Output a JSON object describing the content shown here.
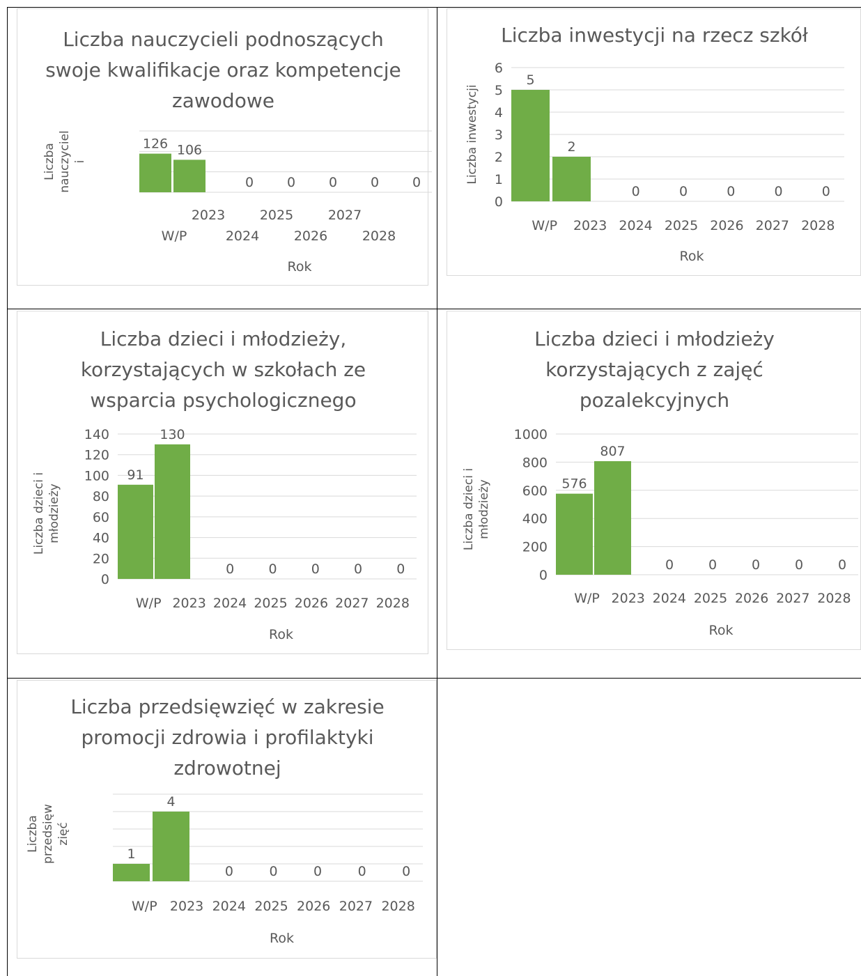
{
  "colors": {
    "bar": "#70ad47",
    "grid": "#d9d9d9",
    "text": "#595959",
    "table_border": "#000000"
  },
  "chart_data": [
    {
      "type": "bar",
      "title": "Liczba nauczycieli podnoszących swoje kwalifikacje oraz kompetencje zawodowe",
      "xlabel": "Rok",
      "ylabel": "Liczba nauczycieli",
      "categories": [
        "W/P",
        "2023",
        "2024",
        "2025",
        "2026",
        "2027",
        "2028"
      ],
      "values": [
        126,
        106,
        0,
        0,
        0,
        0,
        0
      ],
      "data_labels": [
        "126",
        "106",
        "0",
        "0",
        "0",
        "0",
        "0"
      ],
      "ylim": [
        0,
        200
      ],
      "yticks": [],
      "grid": true,
      "legend": "none"
    },
    {
      "type": "bar",
      "title": "Liczba inwestycji na rzecz szkół",
      "xlabel": "Rok",
      "ylabel": "Liczba inwestycji",
      "categories": [
        "W/P",
        "2023",
        "2024",
        "2025",
        "2026",
        "2027",
        "2028"
      ],
      "values": [
        5,
        2,
        0,
        0,
        0,
        0,
        0
      ],
      "data_labels": [
        "5",
        "2",
        "0",
        "0",
        "0",
        "0",
        "0"
      ],
      "ylim": [
        0,
        6
      ],
      "yticks": [
        "0",
        "1",
        "2",
        "3",
        "4",
        "5",
        "6"
      ],
      "grid": true,
      "legend": "none"
    },
    {
      "type": "bar",
      "title": "Liczba dzieci i młodzieży, korzystających w szkołach ze wsparcia psychologicznego",
      "xlabel": "Rok",
      "ylabel": "Liczba dzieci i młodzieży",
      "categories": [
        "W/P",
        "2023",
        "2024",
        "2025",
        "2026",
        "2027",
        "2028"
      ],
      "values": [
        91,
        130,
        0,
        0,
        0,
        0,
        0
      ],
      "data_labels": [
        "91",
        "130",
        "0",
        "0",
        "0",
        "0",
        "0"
      ],
      "ylim": [
        0,
        140
      ],
      "yticks": [
        "0",
        "20",
        "40",
        "60",
        "80",
        "100",
        "120",
        "140"
      ],
      "grid": true,
      "legend": "none"
    },
    {
      "type": "bar",
      "title": "Liczba dzieci i młodzieży korzystających z zajęć pozalekcyjnych",
      "xlabel": "Rok",
      "ylabel": "Liczba dzieci i młodzieży",
      "categories": [
        "W/P",
        "2023",
        "2024",
        "2025",
        "2026",
        "2027",
        "2028"
      ],
      "values": [
        576,
        807,
        0,
        0,
        0,
        0,
        0
      ],
      "data_labels": [
        "576",
        "807",
        "0",
        "0",
        "0",
        "0",
        "0"
      ],
      "ylim": [
        0,
        1000
      ],
      "yticks": [
        "0",
        "200",
        "400",
        "600",
        "800",
        "1000"
      ],
      "grid": true,
      "legend": "none"
    },
    {
      "type": "bar",
      "title": "Liczba przedsięwzięć w zakresie promocji zdrowia i profilaktyki zdrowotnej",
      "xlabel": "Rok",
      "ylabel": "Liczba przedsięwzięć",
      "categories": [
        "W/P",
        "2023",
        "2024",
        "2025",
        "2026",
        "2027",
        "2028"
      ],
      "values": [
        1,
        4,
        0,
        0,
        0,
        0,
        0
      ],
      "data_labels": [
        "1",
        "4",
        "0",
        "0",
        "0",
        "0",
        "0"
      ],
      "ylim": [
        0,
        5
      ],
      "yticks": [],
      "grid": true,
      "legend": "none"
    }
  ]
}
